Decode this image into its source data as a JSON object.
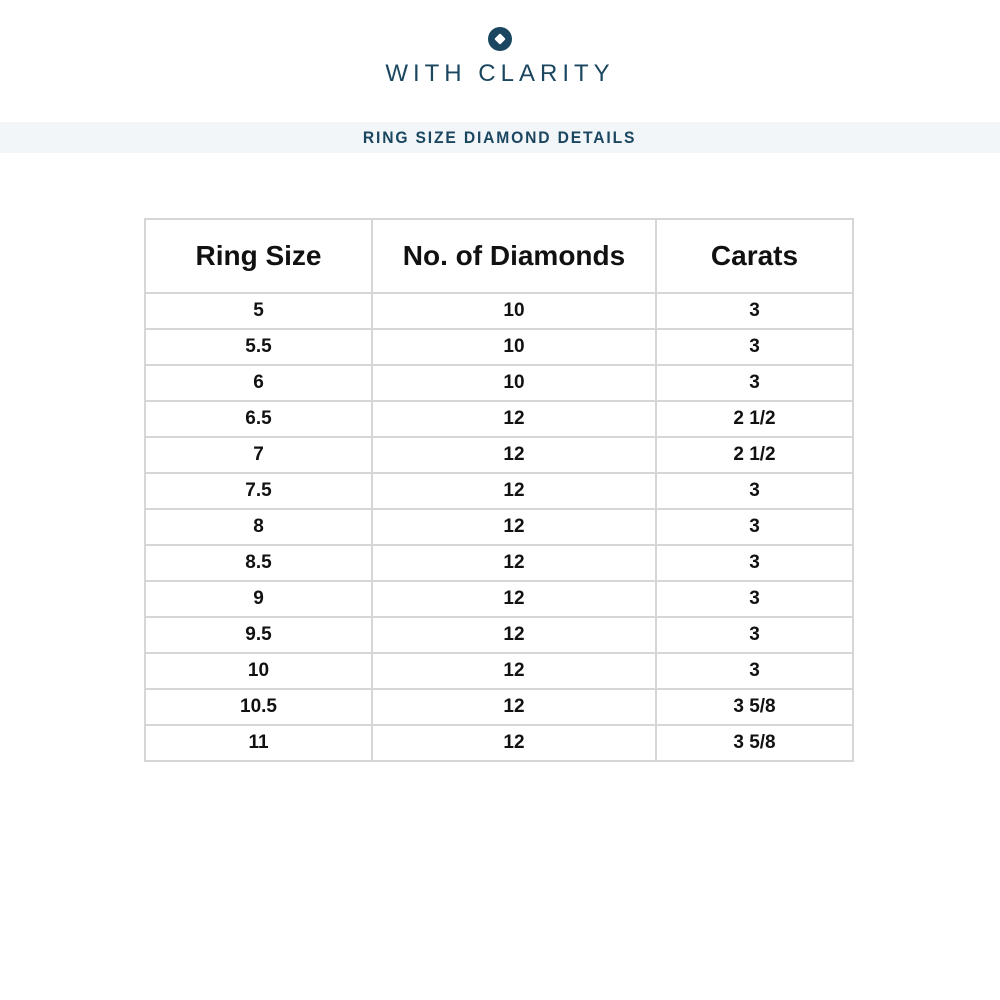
{
  "brand": {
    "name": "WITH CLARITY",
    "logo_icon": "diamond-in-circle-icon"
  },
  "banner": {
    "title": "RING SIZE DIAMOND DETAILS"
  },
  "colors": {
    "navy": "#1b4660",
    "banner_bg": "#f2f6f9",
    "table_border": "#d6d6d6",
    "table_text": "#111111",
    "page_bg": "#ffffff"
  },
  "chart_data": {
    "type": "table",
    "title": "RING SIZE DIAMOND DETAILS",
    "columns": [
      "Ring Size",
      "No. of Diamonds",
      "Carats"
    ],
    "rows": [
      [
        "5",
        "10",
        "3"
      ],
      [
        "5.5",
        "10",
        "3"
      ],
      [
        "6",
        "10",
        "3"
      ],
      [
        "6.5",
        "12",
        "2 1/2"
      ],
      [
        "7",
        "12",
        "2 1/2"
      ],
      [
        "7.5",
        "12",
        "3"
      ],
      [
        "8",
        "12",
        "3"
      ],
      [
        "8.5",
        "12",
        "3"
      ],
      [
        "9",
        "12",
        "3"
      ],
      [
        "9.5",
        "12",
        "3"
      ],
      [
        "10",
        "12",
        "3"
      ],
      [
        "10.5",
        "12",
        "3 5/8"
      ],
      [
        "11",
        "12",
        "3 5/8"
      ]
    ]
  }
}
